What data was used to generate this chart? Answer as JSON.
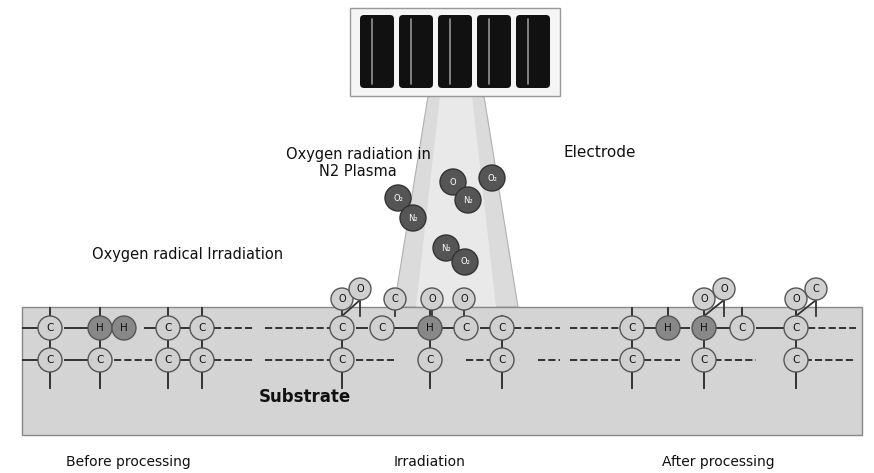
{
  "bg_color": "#ffffff",
  "substrate_color": "#d4d4d4",
  "substrate_border": "#888888",
  "electrode_box_color": "#f5f5f5",
  "electrode_box_border": "#999999",
  "electrode_bar_color": "#111111",
  "funnel_outer": "#c8c8c8",
  "funnel_inner": "#e8e8e8",
  "plasma_ball_color": "#555555",
  "atom_circle_light": "#d0d0d0",
  "atom_circle_dark": "#888888",
  "atom_border": "#555555",
  "line_color": "#333333",
  "text_color": "#111111",
  "title_label": "Oxygen radiation in\nN2 Plasma",
  "electrode_label": "Electrode",
  "radical_label": "Oxygen radical Irradiation",
  "substrate_label": "Substrate",
  "before_label": "Before processing",
  "irrad_label": "Irradiation",
  "after_label": "After processing"
}
